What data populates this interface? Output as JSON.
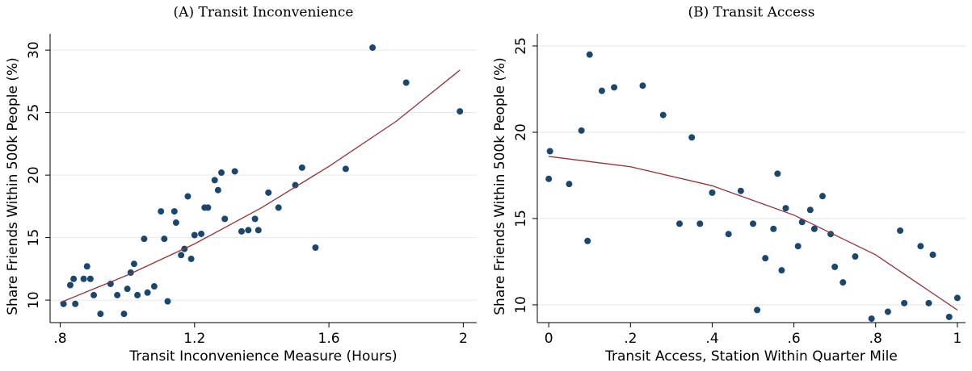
{
  "chart_data": [
    {
      "type": "scatter",
      "title": "(A) Transit Inconvenience",
      "xlabel": "Transit Inconvenience Measure (Hours)",
      "ylabel": "Share Friends Within 500k People (%)",
      "xlim": [
        0.77,
        2.04
      ],
      "ylim": [
        8.2,
        31.3
      ],
      "xticks": [
        {
          "value": 0.8,
          "label": ".8"
        },
        1.2,
        1.6,
        2
      ],
      "yticks": [
        10,
        15,
        20,
        25,
        30
      ],
      "grid": true,
      "series": [
        {
          "type": "scatter",
          "color": "#1a476f",
          "x": [
            0.81,
            0.83,
            0.84,
            0.845,
            0.87,
            0.88,
            0.89,
            0.9,
            0.92,
            0.95,
            0.97,
            0.99,
            1.0,
            1.01,
            1.02,
            1.03,
            1.05,
            1.06,
            1.08,
            1.1,
            1.11,
            1.12,
            1.14,
            1.145,
            1.16,
            1.17,
            1.18,
            1.19,
            1.2,
            1.22,
            1.23,
            1.24,
            1.26,
            1.27,
            1.28,
            1.29,
            1.32,
            1.34,
            1.36,
            1.38,
            1.39,
            1.42,
            1.45,
            1.5,
            1.52,
            1.56,
            1.65,
            1.73,
            1.83,
            1.99
          ],
          "values": [
            9.7,
            11.2,
            11.7,
            9.7,
            11.7,
            12.7,
            11.7,
            10.4,
            8.9,
            11.3,
            10.4,
            8.9,
            10.9,
            12.2,
            12.9,
            10.4,
            14.9,
            10.6,
            11.1,
            17.1,
            14.9,
            9.9,
            17.1,
            16.2,
            13.6,
            14.1,
            18.3,
            13.3,
            15.2,
            15.3,
            17.4,
            17.4,
            19.6,
            18.8,
            20.2,
            16.5,
            20.3,
            15.5,
            15.6,
            16.5,
            15.6,
            18.6,
            17.4,
            19.2,
            20.6,
            14.2,
            20.5,
            30.2,
            27.4,
            25.1
          ]
        },
        {
          "type": "line",
          "color": "#90353b",
          "x": [
            0.8,
            1.0,
            1.2,
            1.4,
            1.6,
            1.8,
            1.99
          ],
          "values": [
            9.8,
            12.0,
            14.5,
            17.4,
            20.7,
            24.3,
            28.4
          ]
        }
      ]
    },
    {
      "type": "scatter",
      "title": "(B) Transit Access",
      "xlabel": "Transit Access, Station Within Quarter Mile",
      "ylabel": "Share Friends Within 500k People (%)",
      "xlim": [
        -0.028,
        1.02
      ],
      "ylim": [
        8.97,
        25.7
      ],
      "xticks": [
        0,
        {
          "value": 0.2,
          "label": ".2"
        },
        {
          "value": 0.4,
          "label": ".4"
        },
        {
          "value": 0.6,
          "label": ".6"
        },
        {
          "value": 0.8,
          "label": ".8"
        },
        1
      ],
      "yticks": [
        10,
        15,
        20,
        25
      ],
      "grid": true,
      "series": [
        {
          "type": "scatter",
          "color": "#1a476f",
          "x": [
            0.0,
            0.003,
            0.05,
            0.08,
            0.095,
            0.1,
            0.13,
            0.16,
            0.23,
            0.28,
            0.32,
            0.35,
            0.37,
            0.4,
            0.44,
            0.47,
            0.5,
            0.51,
            0.53,
            0.55,
            0.56,
            0.57,
            0.58,
            0.61,
            0.62,
            0.64,
            0.65,
            0.67,
            0.69,
            0.7,
            0.72,
            0.75,
            0.79,
            0.83,
            0.86,
            0.87,
            0.91,
            0.93,
            0.94,
            0.98,
            1.0
          ],
          "values": [
            17.3,
            18.9,
            17.0,
            20.1,
            13.7,
            24.5,
            22.4,
            22.6,
            22.7,
            21.0,
            14.7,
            19.7,
            14.7,
            16.5,
            14.1,
            16.6,
            14.7,
            9.7,
            12.7,
            14.4,
            17.6,
            12.0,
            15.6,
            13.4,
            14.8,
            15.5,
            14.4,
            16.3,
            14.1,
            12.2,
            11.3,
            12.8,
            9.2,
            9.6,
            14.3,
            10.1,
            13.4,
            10.1,
            12.9,
            9.3,
            10.4
          ]
        },
        {
          "type": "line",
          "color": "#90353b",
          "x": [
            0,
            0.2,
            0.4,
            0.6,
            0.8,
            1.0
          ],
          "values": [
            18.6,
            18.0,
            16.9,
            15.2,
            12.9,
            9.7
          ]
        }
      ]
    }
  ]
}
